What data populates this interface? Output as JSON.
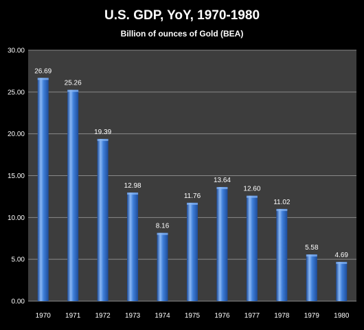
{
  "chart_data": {
    "type": "bar",
    "title": "U.S. GDP, YoY, 1970-1980",
    "subtitle": "Billion of ounces of Gold (BEA)",
    "xlabel": "",
    "ylabel": "",
    "categories": [
      "1970",
      "1971",
      "1972",
      "1973",
      "1974",
      "1975",
      "1976",
      "1977",
      "1978",
      "1979",
      "1980"
    ],
    "values": [
      26.69,
      25.26,
      19.39,
      12.98,
      8.16,
      11.76,
      13.64,
      12.6,
      11.02,
      5.58,
      4.69
    ],
    "data_labels": [
      "26.69",
      "25.26",
      "19.39",
      "12.98",
      "8.16",
      "11.76",
      "13.64",
      "12.60",
      "11.02",
      "5.58",
      "4.69"
    ],
    "ylim": [
      0,
      30
    ],
    "yticks": [
      "0.00",
      "5.00",
      "10.00",
      "15.00",
      "20.00",
      "25.00",
      "30.00"
    ],
    "grid": true,
    "legend": "none",
    "colors": {
      "background": "#000000",
      "plot_area": "#3d3d3d",
      "bar": "#3f7fd9",
      "bar_highlight": "#8ab8f5",
      "bar_shadow": "#1d4c9a",
      "text": "#ffffff"
    }
  }
}
